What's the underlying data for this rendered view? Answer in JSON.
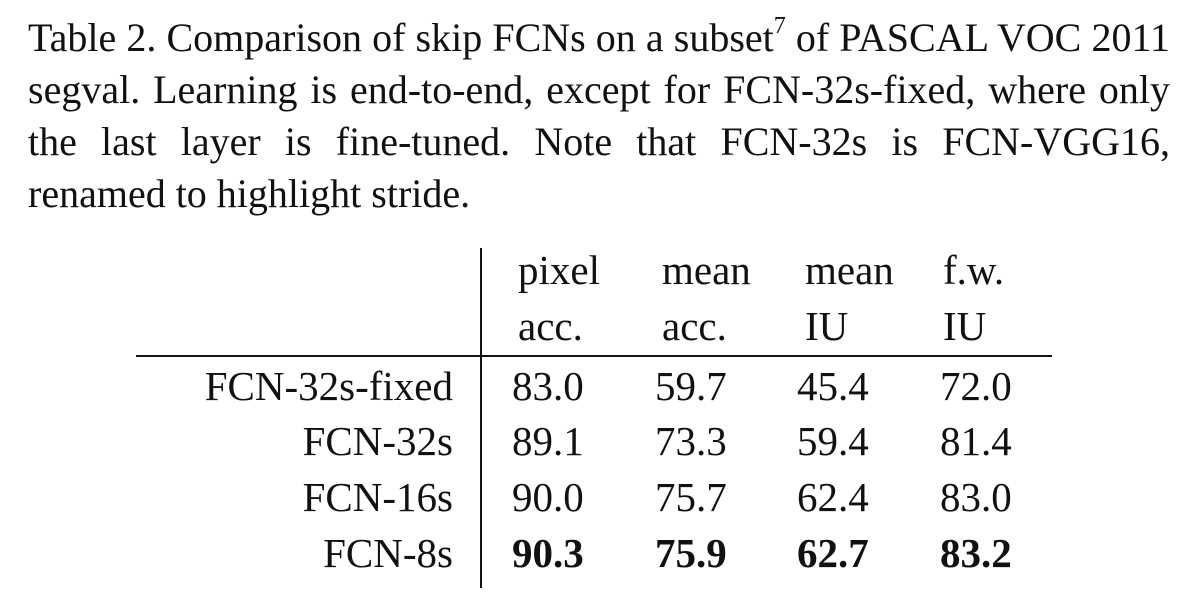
{
  "caption": {
    "prefix": "Table 2.  Comparison of skip FCNs on a subset",
    "footnote": "7",
    "suffix": " of PASCAL VOC 2011 segval.  Learning is end-to-end, except for FCN-32s-fixed, where only the last layer is fine-tuned. Note that FCN-32s is FCN-VGG16, renamed to highlight stride."
  },
  "table": {
    "headers": [
      {
        "line1": "pixel",
        "line2": "acc."
      },
      {
        "line1": "mean",
        "line2": "acc."
      },
      {
        "line1": "mean",
        "line2": "IU"
      },
      {
        "line1": "f.w.",
        "line2": "IU"
      }
    ],
    "rows": [
      {
        "label": "FCN-32s-fixed",
        "values": [
          "83.0",
          "59.7",
          "45.4",
          "72.0"
        ],
        "bold": false
      },
      {
        "label": "FCN-32s",
        "values": [
          "89.1",
          "73.3",
          "59.4",
          "81.4"
        ],
        "bold": false
      },
      {
        "label": "FCN-16s",
        "values": [
          "90.0",
          "75.7",
          "62.4",
          "83.0"
        ],
        "bold": false
      },
      {
        "label": "FCN-8s",
        "values": [
          "90.3",
          "75.9",
          "62.7",
          "83.2"
        ],
        "bold": true
      }
    ]
  }
}
